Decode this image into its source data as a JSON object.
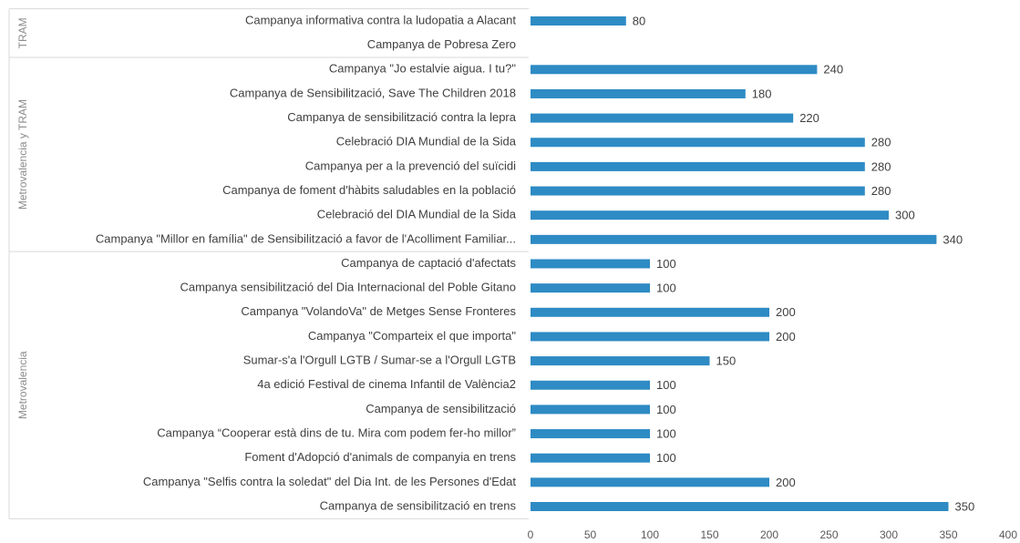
{
  "chart_data": {
    "type": "bar",
    "orientation": "horizontal",
    "color": "#2e8bc4",
    "xlim": [
      0,
      400
    ],
    "xticks": [
      0,
      50,
      100,
      150,
      200,
      250,
      300,
      350,
      400
    ],
    "grid": false,
    "groups": [
      {
        "name": "TRAM",
        "categories": [
          "Campanya informativa contra la ludopatia a Alacant",
          "Campanya de Pobresa Zero"
        ],
        "values": [
          80,
          null
        ]
      },
      {
        "name": "Metrovalencia y TRAM",
        "categories": [
          "Campanya \"Jo estalvie aigua. I tu?\"",
          "Campanya de Sensibilització, Save The Children 2018",
          "Campanya de sensibilització contra la lepra",
          "Celebració DIA Mundial de la Sida",
          "Campanya per a la prevenció del suïcidi",
          "Campanya de foment d'hàbits saludables en la població",
          "Celebració del DIA Mundial de la Sida",
          "Campanya \"Millor en família\" de Sensibilització a favor de l'Acolliment Familiar..."
        ],
        "values": [
          240,
          180,
          220,
          280,
          280,
          280,
          300,
          340
        ]
      },
      {
        "name": "Metrovalencia",
        "categories": [
          "Campanya de captació d'afectats",
          "Campanya sensibilització del Dia Internacional del Poble Gitano",
          "Campanya \"VolandoVa\" de Metges Sense Fronteres",
          "Campanya \"Comparteix el que importa\"",
          "Sumar-s'a l'Orgull LGTB / Sumar-se a l'Orgull LGTB",
          "4a edició Festival de cinema Infantil de València2",
          "Campanya de sensibilització",
          "Campanya “Cooperar està dins de tu. Mira com podem fer-ho millor”",
          "Foment d'Adopció d'animals de companyia en trens",
          "Campanya \"Selfis contra la soledat\" del Dia Int. de les Persones d'Edat",
          "Campanya de sensibilització en trens"
        ],
        "values": [
          100,
          100,
          200,
          200,
          150,
          100,
          100,
          100,
          100,
          200,
          350
        ]
      }
    ]
  }
}
